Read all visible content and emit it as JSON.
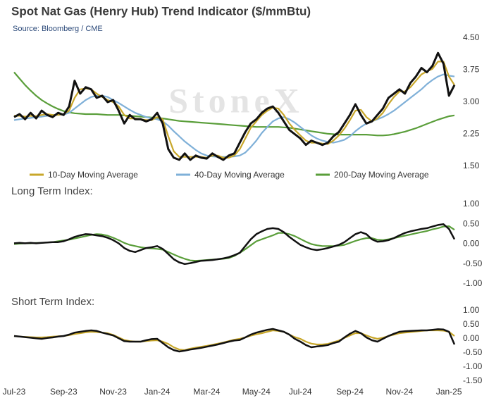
{
  "chart_data": [
    {
      "type": "line",
      "title": "Spot Nat Gas (Henry Hub) Trend Indicator ($/mmBtu)",
      "subtitle": "Source: Bloomberg / CME",
      "watermark": "StoneX",
      "ylim": [
        1.5,
        4.5
      ],
      "yticks": [
        {
          "value": 1.5,
          "label": "1.50"
        },
        {
          "value": 2.25,
          "label": "2.25"
        },
        {
          "value": 3,
          "label": "3.00"
        },
        {
          "value": 3.75,
          "label": "3.75"
        },
        {
          "value": 4.5,
          "label": "4.50"
        }
      ],
      "series": [
        {
          "color": "#111111",
          "values": [
            2.65,
            2.72,
            2.6,
            2.75,
            2.62,
            2.8,
            2.7,
            2.65,
            2.75,
            2.7,
            2.9,
            3.5,
            3.2,
            3.35,
            3.3,
            3.1,
            3.15,
            3.0,
            3.05,
            2.8,
            2.5,
            2.7,
            2.6,
            2.6,
            2.55,
            2.6,
            2.75,
            2.5,
            1.9,
            1.7,
            1.65,
            1.8,
            1.65,
            1.75,
            1.7,
            1.68,
            1.8,
            1.72,
            1.65,
            1.75,
            1.8,
            2.05,
            2.3,
            2.5,
            2.6,
            2.75,
            2.85,
            2.9,
            2.75,
            2.55,
            2.35,
            2.25,
            2.15,
            2.0,
            2.1,
            2.05,
            2.0,
            2.05,
            2.2,
            2.3,
            2.5,
            2.7,
            2.95,
            2.7,
            2.5,
            2.55,
            2.7,
            2.85,
            3.1,
            3.2,
            3.3,
            3.2,
            3.45,
            3.6,
            3.8,
            3.7,
            3.85,
            4.15,
            3.9,
            3.15,
            3.4
          ]
        },
        {
          "name": "10-Day Moving Average",
          "color": "#c8a72a",
          "values": [
            2.68,
            2.68,
            2.66,
            2.68,
            2.67,
            2.7,
            2.72,
            2.7,
            2.7,
            2.72,
            2.8,
            3.1,
            3.3,
            3.32,
            3.3,
            3.2,
            3.12,
            3.05,
            3.0,
            2.9,
            2.7,
            2.62,
            2.62,
            2.6,
            2.58,
            2.58,
            2.65,
            2.6,
            2.2,
            1.85,
            1.72,
            1.72,
            1.72,
            1.72,
            1.72,
            1.7,
            1.75,
            1.75,
            1.7,
            1.7,
            1.75,
            1.9,
            2.15,
            2.4,
            2.55,
            2.7,
            2.8,
            2.87,
            2.85,
            2.7,
            2.5,
            2.35,
            2.22,
            2.1,
            2.05,
            2.05,
            2.03,
            2.02,
            2.1,
            2.22,
            2.38,
            2.58,
            2.8,
            2.82,
            2.65,
            2.55,
            2.62,
            2.75,
            2.95,
            3.12,
            3.25,
            3.25,
            3.35,
            3.5,
            3.65,
            3.72,
            3.78,
            3.95,
            3.95,
            3.6,
            3.4
          ]
        },
        {
          "name": "40-Day Moving Average",
          "color": "#7fb0d8",
          "values": [
            2.58,
            2.6,
            2.62,
            2.63,
            2.65,
            2.66,
            2.68,
            2.7,
            2.7,
            2.71,
            2.75,
            2.85,
            2.95,
            3.05,
            3.12,
            3.15,
            3.15,
            3.12,
            3.05,
            2.98,
            2.9,
            2.82,
            2.75,
            2.7,
            2.65,
            2.62,
            2.6,
            2.55,
            2.45,
            2.32,
            2.2,
            2.08,
            1.98,
            1.88,
            1.8,
            1.75,
            1.73,
            1.72,
            1.72,
            1.72,
            1.73,
            1.75,
            1.82,
            1.95,
            2.1,
            2.28,
            2.42,
            2.55,
            2.62,
            2.65,
            2.6,
            2.52,
            2.42,
            2.32,
            2.22,
            2.15,
            2.1,
            2.07,
            2.05,
            2.08,
            2.12,
            2.2,
            2.32,
            2.42,
            2.5,
            2.55,
            2.6,
            2.65,
            2.72,
            2.8,
            2.9,
            3.0,
            3.1,
            3.2,
            3.3,
            3.42,
            3.52,
            3.6,
            3.65,
            3.62,
            3.6
          ]
        },
        {
          "name": "200-Day Moving Average",
          "color": "#5a9e3a",
          "values": [
            3.7,
            3.55,
            3.4,
            3.27,
            3.15,
            3.05,
            2.97,
            2.9,
            2.84,
            2.79,
            2.76,
            2.74,
            2.73,
            2.72,
            2.72,
            2.72,
            2.71,
            2.7,
            2.7,
            2.7,
            2.69,
            2.68,
            2.67,
            2.66,
            2.65,
            2.64,
            2.63,
            2.62,
            2.6,
            2.58,
            2.56,
            2.55,
            2.54,
            2.53,
            2.52,
            2.51,
            2.5,
            2.49,
            2.48,
            2.47,
            2.46,
            2.45,
            2.44,
            2.43,
            2.42,
            2.42,
            2.42,
            2.42,
            2.42,
            2.41,
            2.4,
            2.38,
            2.36,
            2.34,
            2.32,
            2.3,
            2.28,
            2.26,
            2.25,
            2.24,
            2.24,
            2.24,
            2.24,
            2.24,
            2.24,
            2.23,
            2.22,
            2.22,
            2.23,
            2.25,
            2.28,
            2.31,
            2.35,
            2.39,
            2.44,
            2.49,
            2.54,
            2.59,
            2.63,
            2.67,
            2.69
          ]
        }
      ]
    },
    {
      "type": "line",
      "title": "Long Term Index:",
      "ylim": [
        -1,
        1
      ],
      "yticks": [
        {
          "value": -1,
          "label": "-1.00"
        },
        {
          "value": -0.5,
          "label": "-0.50"
        },
        {
          "value": 0,
          "label": "0.00"
        },
        {
          "value": 0.5,
          "label": "0.50"
        },
        {
          "value": 1,
          "label": "1.00"
        }
      ],
      "series": [
        {
          "color": "#111111",
          "values": [
            0.02,
            0.03,
            0.02,
            0.03,
            0.02,
            0.03,
            0.04,
            0.05,
            0.05,
            0.07,
            0.12,
            0.18,
            0.22,
            0.25,
            0.24,
            0.22,
            0.2,
            0.16,
            0.1,
            0.02,
            -0.1,
            -0.17,
            -0.2,
            -0.15,
            -0.1,
            -0.08,
            -0.05,
            -0.12,
            -0.25,
            -0.38,
            -0.46,
            -0.5,
            -0.48,
            -0.45,
            -0.42,
            -0.41,
            -0.4,
            -0.38,
            -0.36,
            -0.33,
            -0.28,
            -0.22,
            -0.05,
            0.12,
            0.25,
            0.32,
            0.38,
            0.4,
            0.38,
            0.3,
            0.18,
            0.08,
            -0.02,
            -0.08,
            -0.13,
            -0.15,
            -0.13,
            -0.1,
            -0.06,
            -0.02,
            0.05,
            0.15,
            0.25,
            0.3,
            0.25,
            0.12,
            0.06,
            0.07,
            0.1,
            0.15,
            0.22,
            0.28,
            0.32,
            0.35,
            0.38,
            0.4,
            0.44,
            0.48,
            0.5,
            0.38,
            0.12
          ]
        },
        {
          "color": "#5a9e3a",
          "values": [
            0.0,
            0.01,
            0.02,
            0.02,
            0.03,
            0.03,
            0.04,
            0.05,
            0.07,
            0.09,
            0.11,
            0.14,
            0.17,
            0.2,
            0.23,
            0.25,
            0.24,
            0.21,
            0.16,
            0.1,
            0.03,
            -0.02,
            -0.05,
            -0.08,
            -0.1,
            -0.11,
            -0.12,
            -0.14,
            -0.2,
            -0.26,
            -0.32,
            -0.37,
            -0.41,
            -0.42,
            -0.41,
            -0.4,
            -0.39,
            -0.38,
            -0.37,
            -0.35,
            -0.3,
            -0.22,
            -0.13,
            -0.03,
            0.07,
            0.12,
            0.17,
            0.22,
            0.28,
            0.28,
            0.25,
            0.2,
            0.13,
            0.06,
            0.0,
            -0.03,
            -0.05,
            -0.05,
            -0.05,
            -0.04,
            -0.02,
            0.03,
            0.08,
            0.12,
            0.15,
            0.15,
            0.11,
            0.1,
            0.12,
            0.15,
            0.18,
            0.21,
            0.24,
            0.27,
            0.3,
            0.33,
            0.37,
            0.4,
            0.44,
            0.45,
            0.36
          ]
        }
      ]
    },
    {
      "type": "line",
      "title": "Short Term Index:",
      "ylim": [
        -1.5,
        1
      ],
      "yticks": [
        {
          "value": -1.5,
          "label": "-1.50"
        },
        {
          "value": -1,
          "label": "-1.00"
        },
        {
          "value": -0.5,
          "label": "-0.50"
        },
        {
          "value": 0,
          "label": "0.00"
        },
        {
          "value": 0.5,
          "label": "0.50"
        },
        {
          "value": 1,
          "label": "1.00"
        }
      ],
      "categories": [
        "Jul-23",
        null,
        null,
        null,
        null,
        null,
        null,
        null,
        null,
        "Sep-23",
        null,
        null,
        null,
        null,
        null,
        null,
        null,
        null,
        "Nov-23",
        null,
        null,
        null,
        null,
        null,
        null,
        null,
        "Jan-24",
        null,
        null,
        null,
        null,
        null,
        null,
        null,
        null,
        "Mar-24",
        null,
        null,
        null,
        null,
        null,
        null,
        null,
        null,
        "May-24",
        null,
        null,
        null,
        null,
        null,
        null,
        null,
        "Jul-24",
        null,
        null,
        null,
        null,
        null,
        null,
        null,
        null,
        "Sep-24",
        null,
        null,
        null,
        null,
        null,
        null,
        null,
        null,
        "Nov-24",
        null,
        null,
        null,
        null,
        null,
        null,
        null,
        null,
        "Jan-25",
        null
      ],
      "series": [
        {
          "color": "#111111",
          "values": [
            0.1,
            0.08,
            0.06,
            0.04,
            0.02,
            0.0,
            0.03,
            0.05,
            0.08,
            0.1,
            0.15,
            0.22,
            0.25,
            0.28,
            0.3,
            0.28,
            0.22,
            0.17,
            0.12,
            0.02,
            -0.08,
            -0.1,
            -0.1,
            -0.1,
            -0.05,
            -0.01,
            0.0,
            -0.15,
            -0.3,
            -0.4,
            -0.45,
            -0.42,
            -0.38,
            -0.35,
            -0.32,
            -0.28,
            -0.24,
            -0.2,
            -0.15,
            -0.1,
            -0.06,
            -0.04,
            0.05,
            0.15,
            0.22,
            0.27,
            0.32,
            0.35,
            0.3,
            0.25,
            0.15,
            0.0,
            -0.1,
            -0.22,
            -0.3,
            -0.27,
            -0.25,
            -0.22,
            -0.15,
            -0.1,
            0.05,
            0.18,
            0.28,
            0.2,
            0.05,
            -0.05,
            -0.1,
            0.0,
            0.1,
            0.18,
            0.25,
            0.27,
            0.28,
            0.29,
            0.3,
            0.3,
            0.32,
            0.34,
            0.33,
            0.25,
            -0.2
          ]
        },
        {
          "color": "#c8a72a",
          "values": [
            0.1,
            0.08,
            0.07,
            0.06,
            0.05,
            0.05,
            0.06,
            0.08,
            0.09,
            0.1,
            0.13,
            0.17,
            0.2,
            0.23,
            0.25,
            0.24,
            0.22,
            0.2,
            0.14,
            0.05,
            -0.04,
            -0.08,
            -0.1,
            -0.1,
            -0.08,
            -0.06,
            -0.05,
            -0.1,
            -0.18,
            -0.3,
            -0.38,
            -0.4,
            -0.35,
            -0.31,
            -0.28,
            -0.25,
            -0.21,
            -0.17,
            -0.13,
            -0.08,
            -0.03,
            0.0,
            0.05,
            0.11,
            0.16,
            0.2,
            0.25,
            0.3,
            0.28,
            0.25,
            0.15,
            0.06,
            0.0,
            -0.1,
            -0.17,
            -0.2,
            -0.2,
            -0.18,
            -0.12,
            -0.06,
            0.03,
            0.12,
            0.2,
            0.2,
            0.12,
            0.05,
            0.0,
            0.04,
            0.1,
            0.15,
            0.2,
            0.22,
            0.24,
            0.26,
            0.28,
            0.3,
            0.3,
            0.3,
            0.29,
            0.25,
            0.1
          ]
        }
      ]
    }
  ]
}
